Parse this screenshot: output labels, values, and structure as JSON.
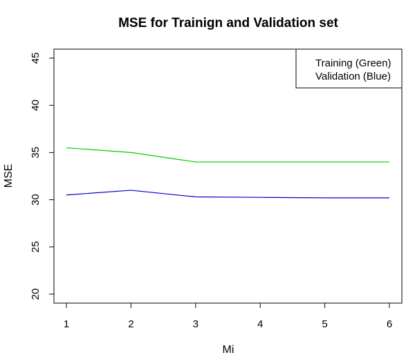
{
  "chart_data": {
    "type": "line",
    "title": "MSE for Trainign and Validation set",
    "xlabel": "Mi",
    "ylabel": "MSE",
    "x": [
      1,
      2,
      3,
      4,
      5,
      6
    ],
    "xlim": [
      1,
      6
    ],
    "ylim": [
      20,
      45
    ],
    "x_ticks": [
      "1",
      "2",
      "3",
      "4",
      "5",
      "6"
    ],
    "y_ticks": [
      "20",
      "25",
      "30",
      "35",
      "40",
      "45"
    ],
    "grid": false,
    "legend_position": "top-right",
    "series": [
      {
        "name": "Training (Green)",
        "color": "#00cc00",
        "values": [
          35.5,
          35.0,
          34.0,
          34.0,
          34.0,
          34.0
        ]
      },
      {
        "name": "Validation (Blue)",
        "color": "#0000cc",
        "values": [
          30.5,
          31.0,
          30.3,
          30.25,
          30.2,
          30.2
        ]
      }
    ]
  }
}
